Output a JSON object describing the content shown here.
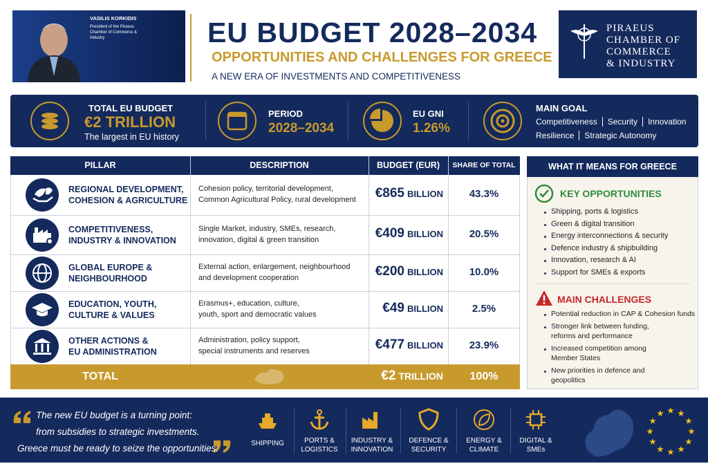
{
  "header": {
    "name": "VASILIS KORKIDIS",
    "role": [
      "President of the Piraeus",
      "Chamber of Commerce &",
      "Industry"
    ],
    "title": "EU BUDGET 2028–2034",
    "subtitle": "OPPORTUNITIES AND CHALLENGES FOR GREECE",
    "tagline": "A NEW ERA OF INVESTMENTS AND COMPETITIVENESS",
    "logo": [
      "PIRAEUS",
      "CHAMBER OF",
      "COMMERCE",
      "& INDUSTRY"
    ]
  },
  "stats": [
    {
      "label": "TOTAL EU BUDGET",
      "value": "€2 TRILLION",
      "note": "The largest in EU history"
    },
    {
      "label": "PERIOD",
      "value": "2028–2034"
    },
    {
      "label": "EU GNI",
      "value": "1.26%"
    },
    {
      "label": "MAIN GOAL",
      "lines": [
        [
          "Competitiveness",
          "Security",
          "Innovation"
        ],
        [
          "Resilience",
          "Strategic Autonomy"
        ]
      ]
    }
  ],
  "table": {
    "headers": [
      "PILLAR",
      "DESCRIPTION",
      "BUDGET (EUR)",
      "SHARE OF TOTAL"
    ],
    "rows": [
      {
        "pillar": [
          "REGIONAL DEVELOPMENT,",
          "COHESION & AGRICULTURE"
        ],
        "description": [
          "Cohesion policy, territorial development,",
          "Common Agricultural Policy, rural development"
        ],
        "amount": "€865",
        "unit": "BILLION",
        "share": "43.3%"
      },
      {
        "pillar": [
          "COMPETITIVENESS,",
          "INDUSTRY & INNOVATION"
        ],
        "description": [
          "Single Market, industry, SMEs, research,",
          "innovation, digital & green transition"
        ],
        "amount": "€409",
        "unit": "BILLION",
        "share": "20.5%"
      },
      {
        "pillar": [
          "GLOBAL EUROPE &",
          "NEIGHBOURHOOD"
        ],
        "description": [
          "External action, enlargement, neighbourhood",
          "and development cooperation"
        ],
        "amount": "€200",
        "unit": "BILLION",
        "share": "10.0%"
      },
      {
        "pillar": [
          "EDUCATION, YOUTH,",
          "CULTURE & VALUES"
        ],
        "description": [
          "Erasmus+, education, culture,",
          "youth, sport and democratic values"
        ],
        "amount": "€49",
        "unit": "BILLION",
        "share": "2.5%"
      },
      {
        "pillar": [
          "OTHER ACTIONS &",
          "EU ADMINISTRATION"
        ],
        "description": [
          "Administration, policy support,",
          "special instruments and reserves"
        ],
        "amount": "€477",
        "unit": "BILLION",
        "share": "23.9%"
      }
    ],
    "total": {
      "label": "TOTAL",
      "amount": "€2",
      "unit": "TRILLION",
      "share": "100%"
    }
  },
  "greece": {
    "title": "WHAT IT MEANS FOR GREECE",
    "opportunities": {
      "title": "KEY OPPORTUNITIES",
      "items": [
        "Shipping, ports & logistics",
        "Green & digital transition",
        "Energy interconnections & security",
        "Defence industry & shipbuilding",
        "Innovation, research & AI",
        "Support for SMEs & exports"
      ]
    },
    "challenges": {
      "title": "MAIN CHALLENGES",
      "items": [
        [
          "Potential reduction in CAP & Cohesion funds"
        ],
        [
          "Stronger link between funding,",
          "reforms and performance"
        ],
        [
          "Increased competition among",
          "Member States"
        ],
        [
          "New priorities in defence and",
          "geopolitics"
        ]
      ]
    }
  },
  "footer": {
    "quote": [
      "The new EU budget is a turning point:",
      "from subsidies to strategic investments.",
      "Greece must be ready to seize the opportunities."
    ],
    "sectors": [
      [
        "SHIPPING"
      ],
      [
        "PORTS &",
        "LOGISTICS"
      ],
      [
        "INDUSTRY &",
        "INNOVATION"
      ],
      [
        "DEFENCE &",
        "SECURITY"
      ],
      [
        "ENERGY &",
        "CLIMATE"
      ],
      [
        "DIGITAL &",
        "SMEs"
      ]
    ]
  }
}
